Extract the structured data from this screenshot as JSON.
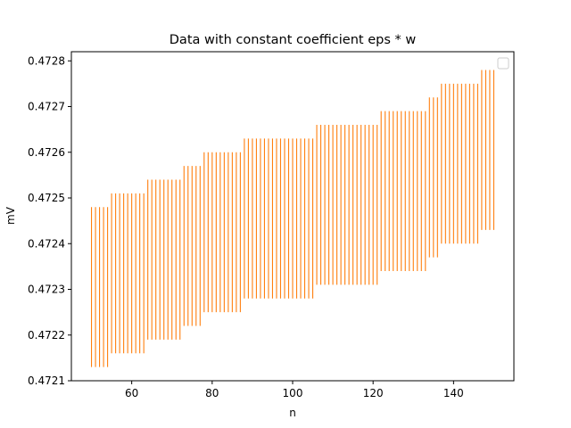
{
  "chart_data": {
    "type": "errorbar",
    "title": "Data with constant coefficient eps * w",
    "xlabel": "n",
    "ylabel": "mV",
    "xlim": [
      45,
      155
    ],
    "ylim": [
      0.4721,
      0.47282
    ],
    "x_ticks": [
      60,
      80,
      100,
      120,
      140
    ],
    "y_ticks": [
      0.4721,
      0.4722,
      0.4723,
      0.4724,
      0.4725,
      0.4726,
      0.4727,
      0.4728
    ],
    "x_tick_labels": [
      "60",
      "80",
      "100",
      "120",
      "140"
    ],
    "y_tick_labels": [
      "0.4721",
      "0.4722",
      "0.4723",
      "0.4724",
      "0.4725",
      "0.4726",
      "0.4727",
      "0.4728"
    ],
    "grid": false,
    "legend": {
      "position": "top-right",
      "entries": []
    },
    "series": [
      {
        "color": "#ff7f0e",
        "x_start": 50,
        "x_end": 150,
        "x_step": 1,
        "segments": [
          {
            "from": 50,
            "to": 54,
            "low": 0.47213,
            "high": 0.47248
          },
          {
            "from": 55,
            "to": 59,
            "low": 0.47216,
            "high": 0.47251
          },
          {
            "from": 60,
            "to": 63,
            "low": 0.47216,
            "high": 0.47251
          },
          {
            "from": 64,
            "to": 72,
            "low": 0.47219,
            "high": 0.47254
          },
          {
            "from": 73,
            "to": 77,
            "low": 0.47222,
            "high": 0.47257
          },
          {
            "from": 78,
            "to": 87,
            "low": 0.47225,
            "high": 0.4726
          },
          {
            "from": 88,
            "to": 105,
            "low": 0.47228,
            "high": 0.47263
          },
          {
            "from": 106,
            "to": 121,
            "low": 0.47231,
            "high": 0.47266
          },
          {
            "from": 122,
            "to": 133,
            "low": 0.47234,
            "high": 0.47269
          },
          {
            "from": 134,
            "to": 136,
            "low": 0.47237,
            "high": 0.47272
          },
          {
            "from": 137,
            "to": 146,
            "low": 0.4724,
            "high": 0.47275
          },
          {
            "from": 147,
            "to": 150,
            "low": 0.47243,
            "high": 0.47278
          }
        ]
      }
    ]
  }
}
